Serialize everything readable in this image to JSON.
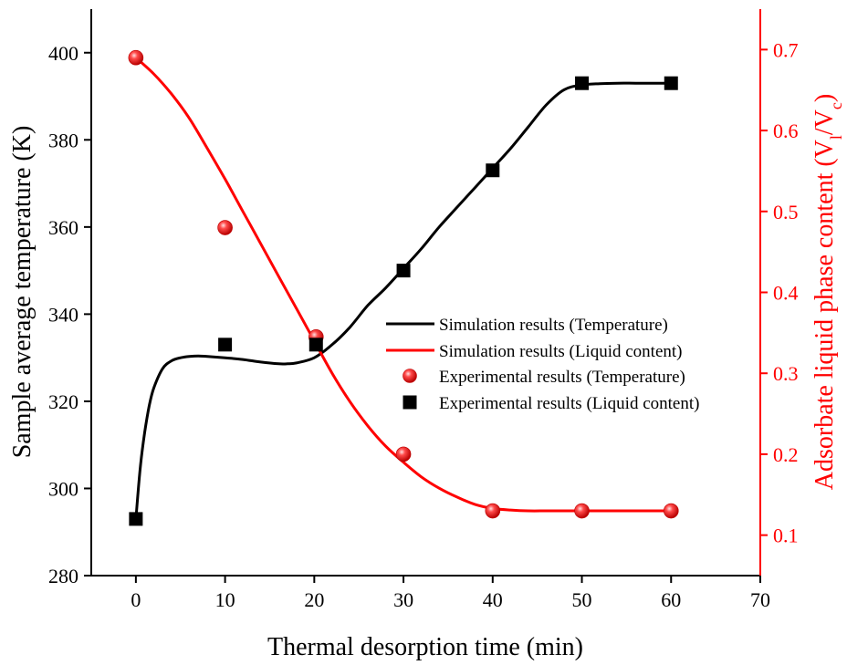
{
  "chart_data": {
    "type": "line",
    "xlabel": "Thermal desorption time (min)",
    "ylabel_left": "Sample average temperature (K)",
    "ylabel_right_prefix": "Adsorbate liquid phase content (V",
    "ylabel_right_sub1": "l",
    "ylabel_right_mid": "/V",
    "ylabel_right_sub2": "c",
    "ylabel_right_suffix": ")",
    "xlim": [
      -5,
      70
    ],
    "ylim_left": [
      280,
      410
    ],
    "ylim_right": [
      0.05,
      0.75
    ],
    "x_ticks": [
      0,
      10,
      20,
      30,
      40,
      50,
      60,
      70
    ],
    "y_left_ticks": [
      280,
      300,
      320,
      340,
      360,
      380,
      400
    ],
    "y_right_ticks": [
      0.1,
      0.2,
      0.3,
      0.4,
      0.5,
      0.6,
      0.7
    ],
    "colors": {
      "temperature": "#000000",
      "liquid": "#ff0000"
    },
    "series": [
      {
        "name": "Simulation results (Temperature)",
        "axis": "left",
        "style": "line",
        "color": "#000000",
        "x": [
          0,
          0.5,
          1,
          1.5,
          2,
          3,
          4,
          5,
          6,
          7,
          8,
          10,
          12,
          14,
          16,
          17,
          18,
          20,
          22,
          24,
          26,
          28,
          30,
          32,
          34,
          36,
          38,
          40,
          42,
          44,
          46,
          48,
          50,
          52,
          54,
          56,
          58,
          60
        ],
        "values": [
          293,
          305,
          313,
          319,
          323,
          327.5,
          329.3,
          330,
          330.3,
          330.4,
          330.3,
          330,
          329.6,
          329,
          328.6,
          328.6,
          328.8,
          330,
          333,
          337,
          342,
          346,
          350.5,
          355,
          360,
          364.5,
          369,
          373.5,
          378,
          383,
          388,
          391.5,
          392.6,
          392.9,
          393,
          393,
          393,
          393
        ]
      },
      {
        "name": "Simulation results (Liquid content)",
        "axis": "right",
        "style": "line",
        "color": "#ff0000",
        "x": [
          0,
          2,
          4,
          6,
          8,
          10,
          12,
          14,
          16,
          18,
          20,
          22,
          24,
          26,
          28,
          30,
          32,
          34,
          36,
          38,
          40,
          42,
          44,
          46,
          48,
          50,
          52,
          54,
          56,
          58,
          60
        ],
        "values": [
          0.69,
          0.67,
          0.645,
          0.615,
          0.578,
          0.54,
          0.5,
          0.46,
          0.42,
          0.38,
          0.34,
          0.3,
          0.265,
          0.235,
          0.21,
          0.19,
          0.172,
          0.158,
          0.147,
          0.138,
          0.133,
          0.131,
          0.13,
          0.13,
          0.13,
          0.13,
          0.13,
          0.13,
          0.13,
          0.13,
          0.13
        ]
      },
      {
        "name": "Experimental results (Temperature)",
        "axis": "right",
        "style": "circle",
        "color": "#ff0000",
        "x": [
          0,
          10,
          20.2,
          30,
          40,
          50,
          60
        ],
        "values": [
          0.69,
          0.48,
          0.345,
          0.2,
          0.13,
          0.13,
          0.13
        ]
      },
      {
        "name": "Experimental results (Liquid content)",
        "axis": "left",
        "style": "square",
        "color": "#000000",
        "x": [
          0,
          10,
          20.2,
          30,
          40,
          50,
          60
        ],
        "values": [
          293,
          333,
          333,
          350,
          373,
          393,
          393
        ]
      }
    ],
    "legend": [
      {
        "label": "Simulation results (Temperature)",
        "symbol": "line",
        "color": "#000000"
      },
      {
        "label": "Simulation results (Liquid content)",
        "symbol": "line",
        "color": "#ff0000"
      },
      {
        "label": "Experimental results (Temperature)",
        "symbol": "circle",
        "color": "#ff0000"
      },
      {
        "label": "Experimental results (Liquid content)",
        "symbol": "square",
        "color": "#000000"
      }
    ],
    "legend_position": "center-right",
    "grid": false
  }
}
